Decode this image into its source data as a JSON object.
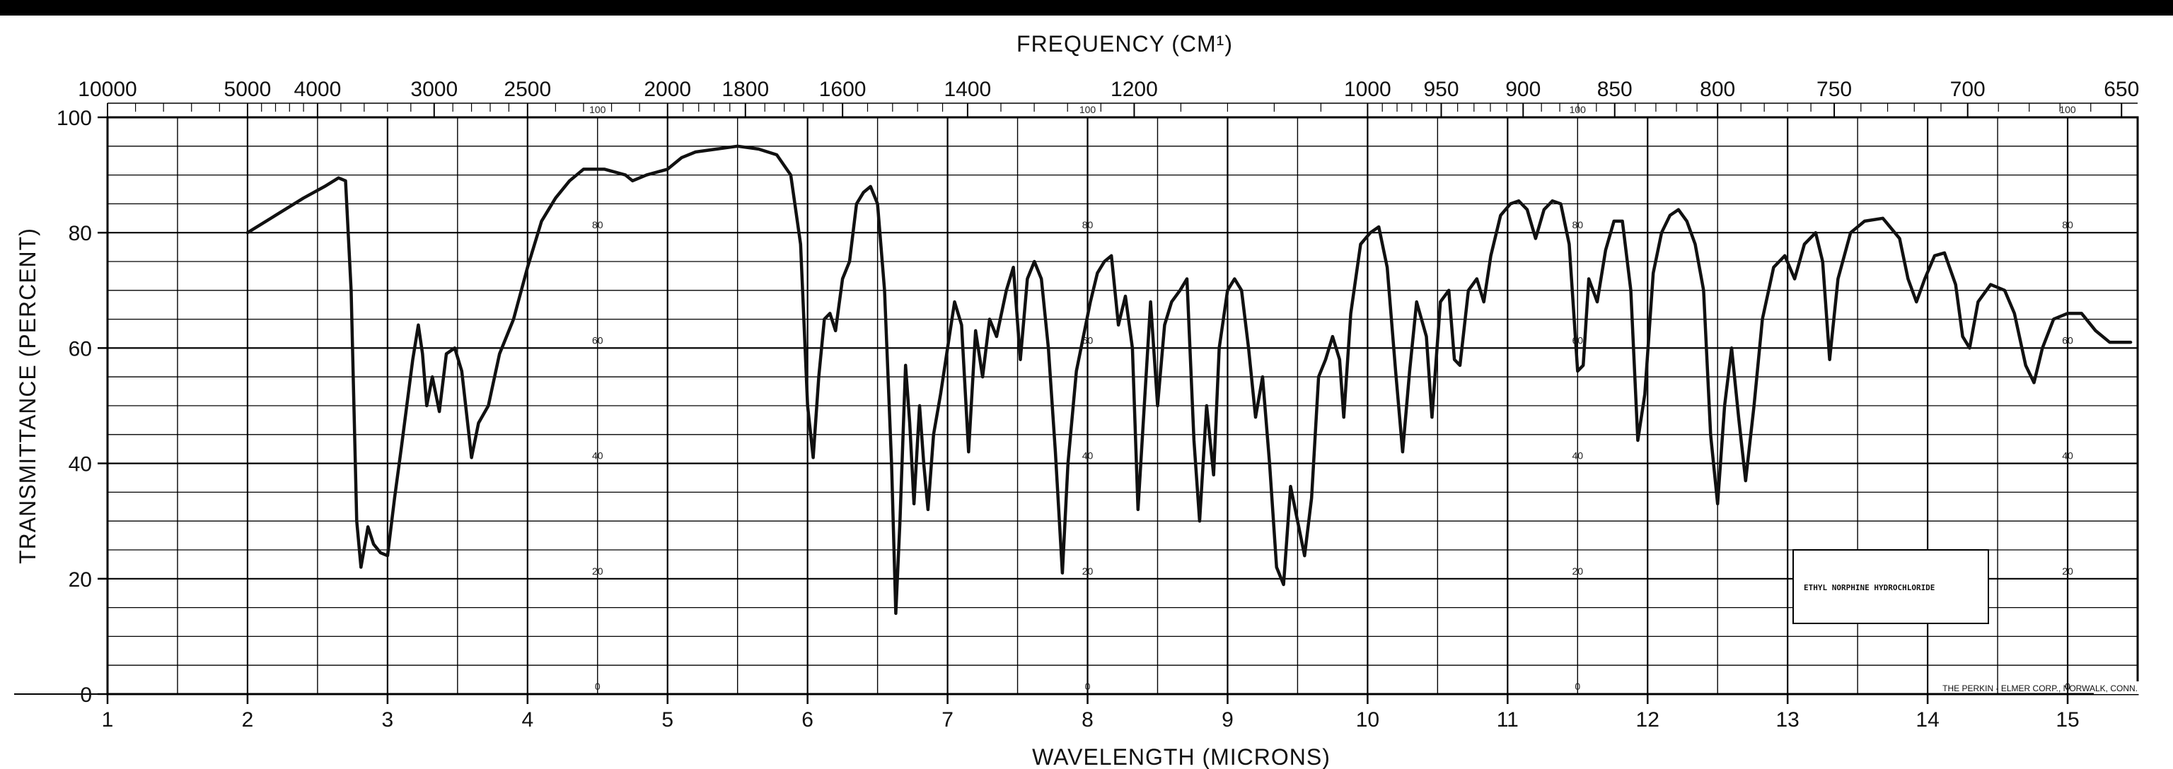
{
  "chart_data": {
    "type": "line",
    "title": "",
    "top_axis_title": "FREQUENCY (CM¹)",
    "xlabel": "WAVELENGTH (MICRONS)",
    "ylabel": "TRANSMITTANCE (PERCENT)",
    "xlim": [
      1,
      15.5
    ],
    "ylim": [
      0,
      100
    ],
    "grid": true,
    "x_ticks": [
      1,
      2,
      3,
      4,
      5,
      6,
      7,
      8,
      9,
      10,
      11,
      12,
      13,
      14,
      15
    ],
    "x_tick_labels": [
      "1",
      "2",
      "3",
      "4",
      "5",
      "6",
      "7",
      "8",
      "9",
      "10",
      "11",
      "12",
      "13",
      "14",
      "15"
    ],
    "y_ticks": [
      0,
      20,
      40,
      60,
      80,
      100
    ],
    "y_tick_labels": [
      "0",
      "20",
      "40",
      "60",
      "80",
      "100"
    ],
    "frequency_ticks": [
      {
        "label": "10000",
        "wavelength": 1.0
      },
      {
        "label": "5000",
        "wavelength": 2.0
      },
      {
        "label": "4000",
        "wavelength": 2.5
      },
      {
        "label": "3000",
        "wavelength": 3.333
      },
      {
        "label": "2500",
        "wavelength": 4.0
      },
      {
        "label": "2000",
        "wavelength": 5.0
      },
      {
        "label": "1800",
        "wavelength": 5.556
      },
      {
        "label": "1600",
        "wavelength": 6.25
      },
      {
        "label": "1400",
        "wavelength": 7.143
      },
      {
        "label": "1200",
        "wavelength": 8.333
      },
      {
        "label": "1000",
        "wavelength": 10.0
      },
      {
        "label": "950",
        "wavelength": 10.526
      },
      {
        "label": "900",
        "wavelength": 11.111
      },
      {
        "label": "850",
        "wavelength": 11.765
      },
      {
        "label": "800",
        "wavelength": 12.5
      },
      {
        "label": "750",
        "wavelength": 13.333
      },
      {
        "label": "700",
        "wavelength": 14.286
      },
      {
        "label": "650",
        "wavelength": 15.385
      }
    ],
    "chart_scale_labels": {
      "wavelengths": [
        4.5,
        8.0,
        11.5,
        15.0
      ],
      "values": [
        "100",
        "80",
        "60",
        "40",
        "20",
        "0"
      ]
    },
    "sample_label": "ETHYL NORPHINE HYDROCHLORIDE",
    "credit": "THE PERKIN - ELMER CORP., NORWALK, CONN.",
    "series": [
      {
        "color": "#111111",
        "points": [
          [
            2.0,
            80
          ],
          [
            2.2,
            83
          ],
          [
            2.4,
            86
          ],
          [
            2.55,
            88
          ],
          [
            2.65,
            89.5
          ],
          [
            2.7,
            89
          ],
          [
            2.74,
            70
          ],
          [
            2.78,
            30
          ],
          [
            2.81,
            22
          ],
          [
            2.86,
            29
          ],
          [
            2.9,
            26
          ],
          [
            2.95,
            24.5
          ],
          [
            3.0,
            24
          ],
          [
            3.05,
            34
          ],
          [
            3.1,
            43
          ],
          [
            3.18,
            58
          ],
          [
            3.22,
            64
          ],
          [
            3.25,
            59
          ],
          [
            3.28,
            50
          ],
          [
            3.32,
            55
          ],
          [
            3.37,
            49
          ],
          [
            3.42,
            59
          ],
          [
            3.48,
            60
          ],
          [
            3.53,
            56
          ],
          [
            3.6,
            41
          ],
          [
            3.65,
            47
          ],
          [
            3.72,
            50
          ],
          [
            3.8,
            59
          ],
          [
            3.9,
            65
          ],
          [
            4.0,
            74
          ],
          [
            4.1,
            82
          ],
          [
            4.2,
            86
          ],
          [
            4.3,
            89
          ],
          [
            4.4,
            91
          ],
          [
            4.55,
            91
          ],
          [
            4.7,
            90
          ],
          [
            4.75,
            89
          ],
          [
            4.85,
            90
          ],
          [
            5.0,
            91
          ],
          [
            5.1,
            93
          ],
          [
            5.2,
            94
          ],
          [
            5.35,
            94.5
          ],
          [
            5.5,
            95
          ],
          [
            5.65,
            94.5
          ],
          [
            5.78,
            93.5
          ],
          [
            5.88,
            90
          ],
          [
            5.95,
            78
          ],
          [
            6.0,
            50
          ],
          [
            6.04,
            41
          ],
          [
            6.08,
            55
          ],
          [
            6.12,
            65
          ],
          [
            6.16,
            66
          ],
          [
            6.2,
            63
          ],
          [
            6.25,
            72
          ],
          [
            6.3,
            75
          ],
          [
            6.35,
            85
          ],
          [
            6.4,
            87
          ],
          [
            6.45,
            88
          ],
          [
            6.5,
            85
          ],
          [
            6.55,
            70
          ],
          [
            6.6,
            40
          ],
          [
            6.63,
            14
          ],
          [
            6.66,
            30
          ],
          [
            6.7,
            57
          ],
          [
            6.73,
            47
          ],
          [
            6.76,
            33
          ],
          [
            6.8,
            50
          ],
          [
            6.83,
            40
          ],
          [
            6.86,
            32
          ],
          [
            6.9,
            45
          ],
          [
            6.95,
            52
          ],
          [
            7.0,
            60
          ],
          [
            7.05,
            68
          ],
          [
            7.1,
            64
          ],
          [
            7.15,
            42
          ],
          [
            7.2,
            63
          ],
          [
            7.25,
            55
          ],
          [
            7.3,
            65
          ],
          [
            7.35,
            62
          ],
          [
            7.42,
            70
          ],
          [
            7.47,
            74
          ],
          [
            7.52,
            58
          ],
          [
            7.57,
            72
          ],
          [
            7.62,
            75
          ],
          [
            7.67,
            72
          ],
          [
            7.72,
            60
          ],
          [
            7.77,
            42
          ],
          [
            7.82,
            21
          ],
          [
            7.86,
            40
          ],
          [
            7.92,
            56
          ],
          [
            7.97,
            62
          ],
          [
            8.02,
            68
          ],
          [
            8.07,
            73
          ],
          [
            8.12,
            75
          ],
          [
            8.17,
            76
          ],
          [
            8.22,
            64
          ],
          [
            8.27,
            69
          ],
          [
            8.32,
            60
          ],
          [
            8.36,
            32
          ],
          [
            8.4,
            48
          ],
          [
            8.45,
            68
          ],
          [
            8.5,
            50
          ],
          [
            8.55,
            64
          ],
          [
            8.6,
            68
          ],
          [
            8.66,
            70
          ],
          [
            8.71,
            72
          ],
          [
            8.76,
            44
          ],
          [
            8.8,
            30
          ],
          [
            8.85,
            50
          ],
          [
            8.9,
            38
          ],
          [
            8.94,
            60
          ],
          [
            9.0,
            70
          ],
          [
            9.05,
            72
          ],
          [
            9.1,
            70
          ],
          [
            9.15,
            60
          ],
          [
            9.2,
            48
          ],
          [
            9.25,
            55
          ],
          [
            9.3,
            40
          ],
          [
            9.35,
            22
          ],
          [
            9.4,
            19
          ],
          [
            9.45,
            36
          ],
          [
            9.5,
            30
          ],
          [
            9.55,
            24
          ],
          [
            9.6,
            34
          ],
          [
            9.65,
            55
          ],
          [
            9.7,
            58
          ],
          [
            9.75,
            62
          ],
          [
            9.8,
            58
          ],
          [
            9.83,
            48
          ],
          [
            9.88,
            66
          ],
          [
            9.95,
            78
          ],
          [
            10.02,
            80
          ],
          [
            10.08,
            81
          ],
          [
            10.14,
            74
          ],
          [
            10.2,
            56
          ],
          [
            10.25,
            42
          ],
          [
            10.3,
            56
          ],
          [
            10.35,
            68
          ],
          [
            10.42,
            62
          ],
          [
            10.46,
            48
          ],
          [
            10.52,
            68
          ],
          [
            10.58,
            70
          ],
          [
            10.62,
            58
          ],
          [
            10.66,
            57
          ],
          [
            10.72,
            70
          ],
          [
            10.78,
            72
          ],
          [
            10.83,
            68
          ],
          [
            10.88,
            76
          ],
          [
            10.95,
            83
          ],
          [
            11.02,
            85
          ],
          [
            11.08,
            85.5
          ],
          [
            11.14,
            84
          ],
          [
            11.2,
            79
          ],
          [
            11.26,
            84
          ],
          [
            11.32,
            85.5
          ],
          [
            11.38,
            85
          ],
          [
            11.44,
            78
          ],
          [
            11.5,
            56
          ],
          [
            11.54,
            57
          ],
          [
            11.58,
            72
          ],
          [
            11.64,
            68
          ],
          [
            11.7,
            77
          ],
          [
            11.76,
            82
          ],
          [
            11.82,
            82
          ],
          [
            11.88,
            70
          ],
          [
            11.93,
            44
          ],
          [
            11.98,
            52
          ],
          [
            12.04,
            73
          ],
          [
            12.1,
            80
          ],
          [
            12.16,
            83
          ],
          [
            12.22,
            84
          ],
          [
            12.28,
            82
          ],
          [
            12.34,
            78
          ],
          [
            12.4,
            70
          ],
          [
            12.45,
            45
          ],
          [
            12.5,
            33
          ],
          [
            12.55,
            50
          ],
          [
            12.6,
            60
          ],
          [
            12.65,
            48
          ],
          [
            12.7,
            37
          ],
          [
            12.76,
            50
          ],
          [
            12.82,
            65
          ],
          [
            12.9,
            74
          ],
          [
            12.98,
            76
          ],
          [
            13.05,
            72
          ],
          [
            13.12,
            78
          ],
          [
            13.2,
            80
          ],
          [
            13.25,
            75
          ],
          [
            13.3,
            58
          ],
          [
            13.36,
            72
          ],
          [
            13.45,
            80
          ],
          [
            13.55,
            82
          ],
          [
            13.68,
            82.5
          ],
          [
            13.8,
            79
          ],
          [
            13.86,
            72
          ],
          [
            13.92,
            68
          ],
          [
            13.98,
            72
          ],
          [
            14.05,
            76
          ],
          [
            14.12,
            76.5
          ],
          [
            14.2,
            71
          ],
          [
            14.25,
            62
          ],
          [
            14.3,
            60
          ],
          [
            14.36,
            68
          ],
          [
            14.45,
            71
          ],
          [
            14.55,
            70
          ],
          [
            14.62,
            66
          ],
          [
            14.7,
            57
          ],
          [
            14.76,
            54
          ],
          [
            14.82,
            60
          ],
          [
            14.9,
            65
          ],
          [
            15.0,
            66
          ],
          [
            15.1,
            66
          ],
          [
            15.2,
            63
          ],
          [
            15.3,
            61
          ],
          [
            15.45,
            61
          ]
        ]
      }
    ]
  }
}
